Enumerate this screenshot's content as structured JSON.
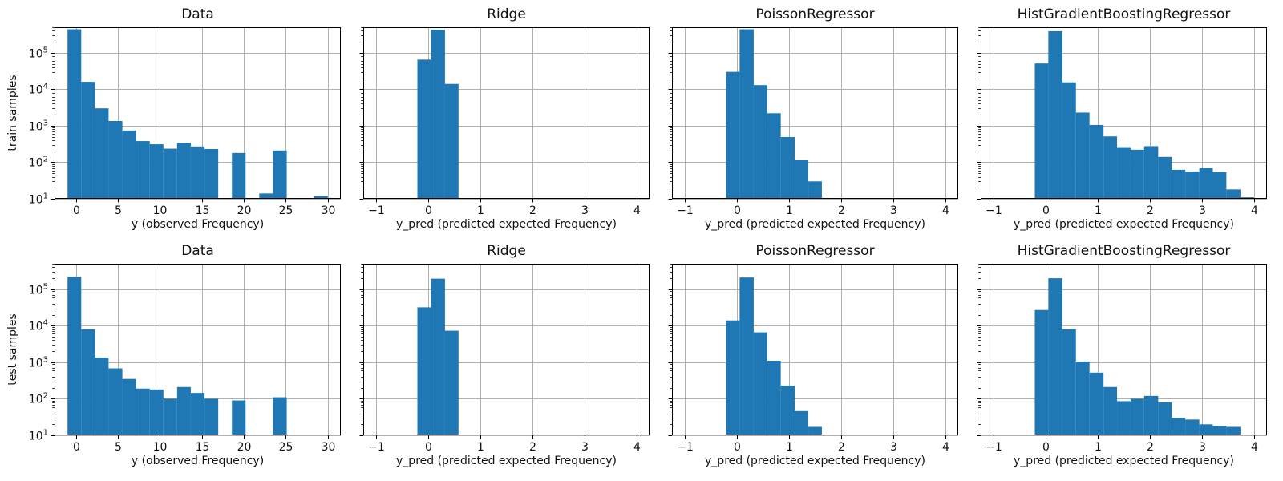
{
  "figure": {
    "background": "#ffffff",
    "bar_color": "#1f77b4",
    "grid_color": "#b0b0b0",
    "spine_color": "#000000",
    "text_color": "#111111",
    "rows": [
      "train",
      "test"
    ],
    "columns": [
      "Data",
      "Ridge",
      "PoissonRegressor",
      "HistGradientBoostingRegressor"
    ]
  },
  "chart_data": [
    {
      "type": "bar",
      "title": "Data",
      "xlabel": "y (observed Frequency)",
      "ylabel": "train samples",
      "yscale": "log",
      "ylim": [
        10,
        500000
      ],
      "xlim": [
        -2.55,
        31.55
      ],
      "xtick_values": [
        0,
        5,
        10,
        15,
        20,
        25,
        30
      ],
      "xtick_labels": [
        "0",
        "5",
        "10",
        "15",
        "20",
        "25",
        "30"
      ],
      "ytick_exponents": [
        1,
        2,
        3,
        4,
        5
      ],
      "ytick_labels": [
        "10^1",
        "10^2",
        "10^3",
        "10^4",
        "10^5"
      ],
      "show_ytick_labels": true,
      "grid": true,
      "bin_edges": [
        -1.0,
        0.63,
        2.26,
        3.89,
        5.53,
        7.16,
        8.79,
        10.42,
        12.05,
        13.68,
        15.32,
        16.95,
        18.58,
        20.21,
        21.84,
        23.47,
        25.11,
        26.74,
        28.37,
        30.0
      ],
      "counts": [
        440000,
        16000,
        3000,
        1350,
        740,
        380,
        310,
        235,
        340,
        270,
        230,
        0,
        180,
        0,
        14,
        210,
        0,
        0,
        12
      ]
    },
    {
      "type": "bar",
      "title": "Ridge",
      "xlabel": "y_pred (predicted expected Frequency)",
      "ylabel": "",
      "yscale": "log",
      "ylim": [
        10,
        500000
      ],
      "xlim": [
        -1.25,
        4.25
      ],
      "xtick_values": [
        -1,
        0,
        1,
        2,
        3,
        4
      ],
      "xtick_labels": [
        "−1",
        "0",
        "1",
        "2",
        "3",
        "4"
      ],
      "ytick_exponents": [
        1,
        2,
        3,
        4,
        5
      ],
      "ytick_labels": [
        "10^1",
        "10^2",
        "10^3",
        "10^4",
        "10^5"
      ],
      "show_ytick_labels": false,
      "grid": true,
      "bin_edges": [
        -1.0,
        -0.74,
        -0.47,
        -0.21,
        0.05,
        0.32,
        0.58,
        0.84,
        1.11,
        1.37,
        1.63,
        1.89,
        2.16,
        2.42,
        2.68,
        2.95,
        3.21,
        3.47,
        3.74,
        4.0
      ],
      "counts": [
        0,
        0,
        0,
        65000,
        430000,
        14000,
        0,
        0,
        0,
        0,
        0,
        0,
        0,
        0,
        0,
        0,
        0,
        0,
        0
      ]
    },
    {
      "type": "bar",
      "title": "PoissonRegressor",
      "xlabel": "y_pred (predicted expected Frequency)",
      "ylabel": "",
      "yscale": "log",
      "ylim": [
        10,
        500000
      ],
      "xlim": [
        -1.25,
        4.25
      ],
      "xtick_values": [
        -1,
        0,
        1,
        2,
        3,
        4
      ],
      "xtick_labels": [
        "−1",
        "0",
        "1",
        "2",
        "3",
        "4"
      ],
      "ytick_exponents": [
        1,
        2,
        3,
        4,
        5
      ],
      "ytick_labels": [
        "10^1",
        "10^2",
        "10^3",
        "10^4",
        "10^5"
      ],
      "show_ytick_labels": false,
      "grid": true,
      "bin_edges": [
        -1.0,
        -0.74,
        -0.47,
        -0.21,
        0.05,
        0.32,
        0.58,
        0.84,
        1.11,
        1.37,
        1.63,
        1.89,
        2.16,
        2.42,
        2.68,
        2.95,
        3.21,
        3.47,
        3.74,
        4.0
      ],
      "counts": [
        0,
        0,
        0,
        30000,
        440000,
        13000,
        2200,
        490,
        115,
        30,
        0,
        0,
        0,
        0,
        0,
        0,
        0,
        0,
        0
      ]
    },
    {
      "type": "bar",
      "title": "HistGradientBoostingRegressor",
      "xlabel": "y_pred (predicted expected Frequency)",
      "ylabel": "",
      "yscale": "log",
      "ylim": [
        10,
        500000
      ],
      "xlim": [
        -1.25,
        4.25
      ],
      "xtick_values": [
        -1,
        0,
        1,
        2,
        3,
        4
      ],
      "xtick_labels": [
        "−1",
        "0",
        "1",
        "2",
        "3",
        "4"
      ],
      "ytick_exponents": [
        1,
        2,
        3,
        4,
        5
      ],
      "ytick_labels": [
        "10^1",
        "10^2",
        "10^3",
        "10^4",
        "10^5"
      ],
      "show_ytick_labels": false,
      "grid": true,
      "bin_edges": [
        -1.0,
        -0.74,
        -0.47,
        -0.21,
        0.05,
        0.32,
        0.58,
        0.84,
        1.11,
        1.37,
        1.63,
        1.89,
        2.16,
        2.42,
        2.68,
        2.95,
        3.21,
        3.47,
        3.74,
        4.0
      ],
      "counts": [
        0,
        0,
        0,
        51000,
        390000,
        15500,
        2300,
        1050,
        510,
        260,
        220,
        275,
        140,
        62,
        56,
        70,
        54,
        18,
        11
      ]
    },
    {
      "type": "bar",
      "title": "Data",
      "xlabel": "y (observed Frequency)",
      "ylabel": "test samples",
      "yscale": "log",
      "ylim": [
        10,
        500000
      ],
      "xlim": [
        -2.55,
        31.55
      ],
      "xtick_values": [
        0,
        5,
        10,
        15,
        20,
        25,
        30
      ],
      "xtick_labels": [
        "0",
        "5",
        "10",
        "15",
        "20",
        "25",
        "30"
      ],
      "ytick_exponents": [
        1,
        2,
        3,
        4,
        5
      ],
      "ytick_labels": [
        "10^1",
        "10^2",
        "10^3",
        "10^4",
        "10^5"
      ],
      "show_ytick_labels": true,
      "grid": true,
      "bin_edges": [
        -1.0,
        0.63,
        2.26,
        3.89,
        5.53,
        7.16,
        8.79,
        10.42,
        12.05,
        13.68,
        15.32,
        16.95,
        18.58,
        20.21,
        21.84,
        23.47,
        25.11,
        26.74,
        28.37,
        30.0
      ],
      "counts": [
        220000,
        8000,
        1350,
        680,
        350,
        190,
        180,
        100,
        210,
        145,
        100,
        0,
        90,
        0,
        0,
        110,
        0,
        0,
        0
      ]
    },
    {
      "type": "bar",
      "title": "Ridge",
      "xlabel": "y_pred (predicted expected Frequency)",
      "ylabel": "",
      "yscale": "log",
      "ylim": [
        10,
        500000
      ],
      "xlim": [
        -1.25,
        4.25
      ],
      "xtick_values": [
        -1,
        0,
        1,
        2,
        3,
        4
      ],
      "xtick_labels": [
        "−1",
        "0",
        "1",
        "2",
        "3",
        "4"
      ],
      "ytick_exponents": [
        1,
        2,
        3,
        4,
        5
      ],
      "ytick_labels": [
        "10^1",
        "10^2",
        "10^3",
        "10^4",
        "10^5"
      ],
      "show_ytick_labels": false,
      "grid": true,
      "bin_edges": [
        -1.0,
        -0.74,
        -0.47,
        -0.21,
        0.05,
        0.32,
        0.58,
        0.84,
        1.11,
        1.37,
        1.63,
        1.89,
        2.16,
        2.42,
        2.68,
        2.95,
        3.21,
        3.47,
        3.74,
        4.0
      ],
      "counts": [
        0,
        0,
        0,
        32000,
        195000,
        7300,
        0,
        0,
        0,
        0,
        0,
        0,
        0,
        0,
        0,
        0,
        0,
        0,
        0
      ]
    },
    {
      "type": "bar",
      "title": "PoissonRegressor",
      "xlabel": "y_pred (predicted expected Frequency)",
      "ylabel": "",
      "yscale": "log",
      "ylim": [
        10,
        500000
      ],
      "xlim": [
        -1.25,
        4.25
      ],
      "xtick_values": [
        -1,
        0,
        1,
        2,
        3,
        4
      ],
      "xtick_labels": [
        "−1",
        "0",
        "1",
        "2",
        "3",
        "4"
      ],
      "ytick_exponents": [
        1,
        2,
        3,
        4,
        5
      ],
      "ytick_labels": [
        "10^1",
        "10^2",
        "10^3",
        "10^4",
        "10^5"
      ],
      "show_ytick_labels": false,
      "grid": true,
      "bin_edges": [
        -1.0,
        -0.74,
        -0.47,
        -0.21,
        0.05,
        0.32,
        0.58,
        0.84,
        1.11,
        1.37,
        1.63,
        1.89,
        2.16,
        2.42,
        2.68,
        2.95,
        3.21,
        3.47,
        3.74,
        4.0
      ],
      "counts": [
        0,
        0,
        0,
        14000,
        210000,
        6600,
        1100,
        230,
        46,
        17,
        0,
        0,
        0,
        0,
        0,
        0,
        0,
        0,
        0
      ]
    },
    {
      "type": "bar",
      "title": "HistGradientBoostingRegressor",
      "xlabel": "y_pred (predicted expected Frequency)",
      "ylabel": "",
      "yscale": "log",
      "ylim": [
        10,
        500000
      ],
      "xlim": [
        -1.25,
        4.25
      ],
      "xtick_values": [
        -1,
        0,
        1,
        2,
        3,
        4
      ],
      "xtick_labels": [
        "−1",
        "0",
        "1",
        "2",
        "3",
        "4"
      ],
      "ytick_exponents": [
        1,
        2,
        3,
        4,
        5
      ],
      "ytick_labels": [
        "10^1",
        "10^2",
        "10^3",
        "10^4",
        "10^5"
      ],
      "show_ytick_labels": false,
      "grid": true,
      "bin_edges": [
        -1.0,
        -0.74,
        -0.47,
        -0.21,
        0.05,
        0.32,
        0.58,
        0.84,
        1.11,
        1.37,
        1.63,
        1.89,
        2.16,
        2.42,
        2.68,
        2.95,
        3.21,
        3.47,
        3.74,
        4.0
      ],
      "counts": [
        0,
        0,
        0,
        27000,
        200000,
        8000,
        1050,
        520,
        210,
        86,
        100,
        120,
        80,
        30,
        27,
        20,
        18,
        17,
        0
      ]
    }
  ]
}
